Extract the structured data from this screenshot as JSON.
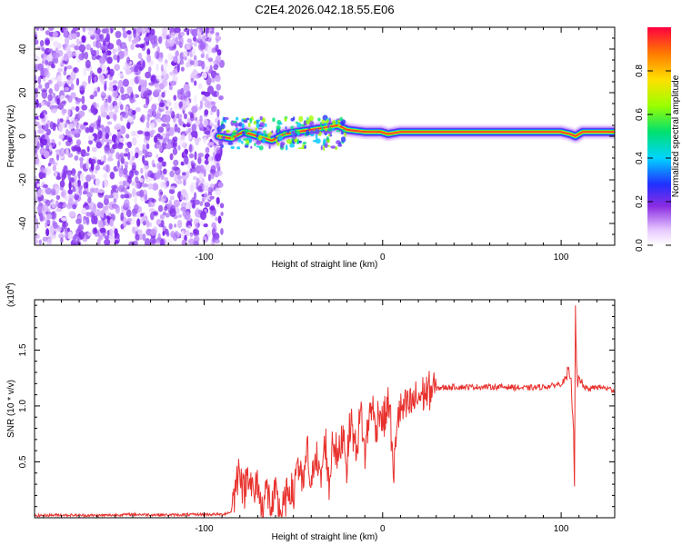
{
  "title": "C2E4.2026.042.18.55.E06",
  "chart_data": [
    {
      "type": "heatmap",
      "panel": "spectrogram",
      "xlabel": "Height of straight line (km)",
      "ylabel": "Frequency (Hz)",
      "xlim": [
        -195,
        130
      ],
      "ylim": [
        -50,
        50
      ],
      "xticks": [
        -100,
        0,
        100
      ],
      "yticks": [
        -40,
        -20,
        0,
        20,
        40
      ],
      "xtick_labels": [
        "-100",
        "0",
        "100"
      ],
      "ytick_labels": [
        "-40",
        "-20",
        "0",
        "20",
        "40"
      ],
      "noise_region_x": [
        -195,
        -92
      ],
      "signal_line": {
        "x": [
          -92,
          -85,
          -78,
          -70,
          -62,
          -55,
          -48,
          -40,
          -32,
          -25,
          -20,
          -10,
          -1,
          3,
          10,
          20,
          30,
          40,
          50,
          60,
          70,
          80,
          90,
          100,
          105,
          108,
          112,
          120,
          130
        ],
        "y": [
          0,
          -1,
          2,
          0,
          -2,
          1,
          2,
          3,
          4,
          5,
          3,
          2,
          2,
          1,
          2,
          2,
          2,
          2,
          2,
          2,
          2,
          2,
          2,
          2,
          1,
          0,
          2,
          2,
          2
        ]
      },
      "colorbar": {
        "label": "Normalized spectral amplitude",
        "range": [
          0,
          1
        ],
        "ticks": [
          0,
          0.2,
          0.4,
          0.6,
          0.8
        ],
        "tick_labels": [
          "0.0",
          "0.2",
          "0.4",
          "0.6",
          "0.8"
        ]
      }
    },
    {
      "type": "line",
      "panel": "snr",
      "xlabel": "Height of straight line (km)",
      "ylabel": "SNR (10 * v/v)",
      "scale_label": "(x10",
      "scale_exp": "4",
      "scale_close": ")",
      "xlim": [
        -195,
        130
      ],
      "ylim": [
        0,
        1.95
      ],
      "xticks": [
        -100,
        0,
        100
      ],
      "yticks": [
        0.5,
        1.0,
        1.5
      ],
      "xtick_labels": [
        "-100",
        "0",
        "100"
      ],
      "ytick_labels": [
        "0.5",
        "1.0",
        "1.5"
      ],
      "series": [
        {
          "name": "SNR",
          "color": "#e8322e",
          "x": [
            -195,
            -180,
            -160,
            -140,
            -120,
            -100,
            -90,
            -85,
            -82,
            -80,
            -78,
            -75,
            -72,
            -70,
            -68,
            -65,
            -62,
            -60,
            -58,
            -55,
            -52,
            -50,
            -48,
            -45,
            -42,
            -40,
            -38,
            -35,
            -32,
            -30,
            -28,
            -25,
            -22,
            -20,
            -18,
            -15,
            -12,
            -10,
            -8,
            -6,
            -4,
            -2,
            0,
            2,
            4,
            6,
            8,
            10,
            15,
            20,
            25,
            30,
            40,
            50,
            60,
            70,
            80,
            90,
            95,
            100,
            103,
            105,
            106,
            107,
            107.5,
            108,
            108.5,
            109,
            110,
            112,
            115,
            120,
            125,
            130
          ],
          "y": [
            0.02,
            0.025,
            0.02,
            0.03,
            0.025,
            0.03,
            0.03,
            0.05,
            0.3,
            0.5,
            0.2,
            0.45,
            0.15,
            0.35,
            0.05,
            0.25,
            0.08,
            0.2,
            0.05,
            0.1,
            0.3,
            0.15,
            0.55,
            0.25,
            0.6,
            0.2,
            0.65,
            0.3,
            0.7,
            0.25,
            0.75,
            0.5,
            0.8,
            0.45,
            0.9,
            0.6,
            0.95,
            0.55,
            0.85,
            1.05,
            0.75,
            1.0,
            0.85,
            0.95,
            1.05,
            0.3,
            0.9,
            0.95,
            1.0,
            1.08,
            1.13,
            1.16,
            1.17,
            1.17,
            1.17,
            1.17,
            1.16,
            1.17,
            1.18,
            1.2,
            1.25,
            1.3,
            1.1,
            0.8,
            0.28,
            1.9,
            1.5,
            1.15,
            1.22,
            1.18,
            1.15,
            1.17,
            1.16,
            1.14
          ]
        }
      ]
    }
  ]
}
